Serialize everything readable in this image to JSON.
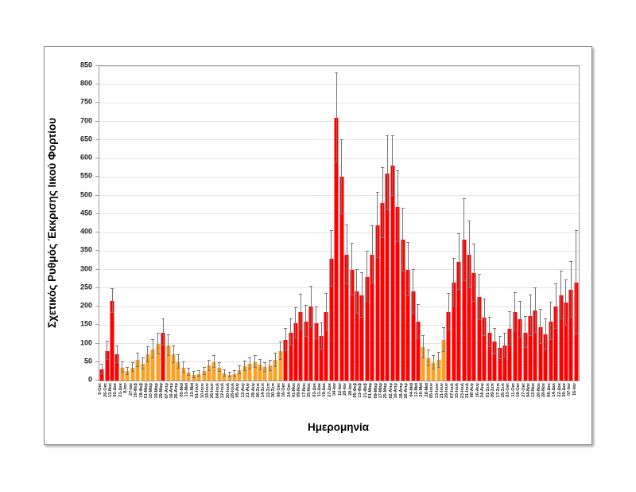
{
  "chart_data": {
    "type": "bar",
    "title": "",
    "xlabel": "Ημερομηνία",
    "ylabel": "Σχετικός Ρυθμός Έκκρισης Ιικού Φορτίου",
    "ylim": [
      0,
      850
    ],
    "ytick_step": 50,
    "grid": "horizontal",
    "legend": "none",
    "error_bars": true,
    "color_key": {
      "R": "#ff0000",
      "O": "#fba226"
    },
    "error_color": "#757575",
    "categories": [
      "5-Οκτ",
      "26-Οκτ",
      "13-Νοε",
      "02-Δεκ",
      "21-Δεκ",
      "8-Ιαν",
      "27-Ιαν",
      "10-Φεβ",
      "19-Φεβ",
      "01-Μαρ",
      "10-Μαρ",
      "19-Μαρ",
      "29-Μαρ",
      "07-Απρ",
      "16-Απρ",
      "26-Απρ",
      "05-Μαϊ",
      "13-Μαϊ",
      "23-Μαϊ",
      "01-Ιουν",
      "10-Ιουν",
      "18-Ιουν",
      "26-Ιουν",
      "04-Ιουλ",
      "12-Ιουλ",
      "20-Ιουλ",
      "28-Ιουλ",
      "05-Αυγ",
      "13-Αυγ",
      "21-Αυγ",
      "29-Αυγ",
      "06-Σεπ",
      "14-Σεπ",
      "22-Σεπ",
      "30-Σεπ",
      "08-Οκτ",
      "16-Οκτ",
      "24-Οκτ",
      "01-Νοε",
      "09-Νοε",
      "17-Νοε",
      "25-Νοε",
      "03-Δεκ",
      "11-Δεκ",
      "19-Δεκ",
      "27-Δεκ",
      "04-Ιαν",
      "12-Ιαν",
      "20-Ιαν",
      "28-Ιαν",
      "05-Φεβ",
      "13-Φεβ",
      "21-Φεβ",
      "01-Μαρ",
      "09-Μαρ",
      "17-Μαρ",
      "25-Μαρ",
      "02-Απρ",
      "10-Απρ",
      "18-Απρ",
      "26-Απρ",
      "04-Μαϊ",
      "12-Μαϊ",
      "20-Μαϊ",
      "28-Μαϊ",
      "05-Ιουν",
      "13-Ιουν",
      "21-Ιουν",
      "29-Ιουν",
      "07-Ιουλ",
      "15-Ιουλ",
      "23-Ιουλ",
      "31-Ιουλ",
      "08-Αυγ",
      "16-Αυγ",
      "24-Αυγ",
      "01-Σεπ",
      "09-Σεπ",
      "17-Σεπ",
      "25-Σεπ",
      "03-Οκτ",
      "11-Οκτ",
      "19-Οκτ",
      "27-Οκτ",
      "04-Νοε",
      "12-Νοε",
      "20-Νοε",
      "28-Νοε",
      "06-Δεκ",
      "14-Δεκ",
      "22-Δεκ",
      "30-Δεκ",
      "07-Ιαν",
      "16-Ιαν"
    ],
    "series": [
      {
        "name": "Σχετικός Ρυθμός Έκκρισης Ιικού Φορτίου",
        "values": [
          30,
          80,
          215,
          70,
          35,
          25,
          35,
          55,
          45,
          70,
          85,
          100,
          130,
          95,
          70,
          50,
          35,
          22,
          15,
          18,
          25,
          40,
          50,
          35,
          20,
          15,
          18,
          28,
          38,
          45,
          50,
          42,
          36,
          40,
          55,
          80,
          110,
          130,
          155,
          185,
          160,
          200,
          155,
          120,
          185,
          330,
          710,
          550,
          340,
          300,
          240,
          230,
          280,
          340,
          420,
          480,
          560,
          580,
          470,
          380,
          300,
          240,
          160,
          90,
          60,
          48,
          55,
          110,
          185,
          265,
          320,
          380,
          340,
          290,
          225,
          170,
          130,
          105,
          88,
          95,
          140,
          185,
          165,
          130,
          175,
          190,
          145,
          125,
          160,
          200,
          230,
          210,
          245,
          265
        ],
        "errors": [
          12,
          25,
          32,
          22,
          14,
          10,
          12,
          18,
          15,
          20,
          24,
          28,
          35,
          28,
          22,
          18,
          14,
          10,
          8,
          8,
          10,
          14,
          16,
          12,
          9,
          7,
          8,
          10,
          13,
          15,
          16,
          14,
          12,
          14,
          18,
          24,
          30,
          35,
          40,
          48,
          42,
          55,
          42,
          35,
          50,
          75,
          120,
          100,
          80,
          70,
          60,
          60,
          68,
          78,
          88,
          95,
          100,
          80,
          95,
          85,
          72,
          60,
          45,
          30,
          22,
          18,
          20,
          32,
          50,
          65,
          75,
          110,
          90,
          78,
          62,
          50,
          40,
          34,
          30,
          32,
          45,
          52,
          48,
          42,
          55,
          60,
          46,
          40,
          50,
          60,
          65,
          62,
          75,
          140
        ],
        "point_colors": "RRRROOOOOOOOROOOOOOOOOOOOOOOOOOOOOOORRRRRRRRRRRRRRRRRRRRRRRRRRROOOOORRRRRRRRRRRRRRRRRRRRRRRRRR"
      }
    ]
  }
}
